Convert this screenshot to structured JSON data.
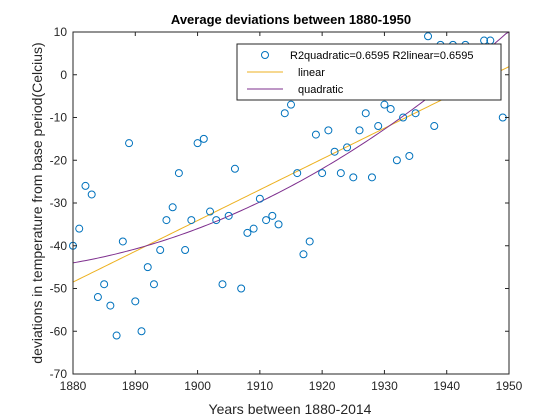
{
  "chart_data": {
    "type": "scatter",
    "title": "Average deviations between 1880-1950",
    "xlabel": "Years between 1880-2014",
    "ylabel": "deviations in temperature from base period(Celcius)",
    "xlim": [
      1880,
      1950
    ],
    "ylim": [
      -70,
      10
    ],
    "xticks": [
      1880,
      1890,
      1900,
      1910,
      1920,
      1930,
      1940,
      1950
    ],
    "yticks": [
      -70,
      -60,
      -50,
      -40,
      -30,
      -20,
      -10,
      0,
      10
    ],
    "grid": false,
    "legend_position": "top-right",
    "series": [
      {
        "name": "R2quadratic=0.6595 R2linear=0.6595",
        "kind": "markers",
        "marker": "circle",
        "color": "#0072BD",
        "x": [
          1880,
          1881,
          1882,
          1883,
          1884,
          1885,
          1886,
          1887,
          1888,
          1889,
          1890,
          1891,
          1892,
          1893,
          1894,
          1895,
          1896,
          1897,
          1898,
          1899,
          1900,
          1901,
          1902,
          1903,
          1904,
          1905,
          1906,
          1907,
          1908,
          1909,
          1910,
          1911,
          1912,
          1913,
          1914,
          1915,
          1916,
          1917,
          1918,
          1919,
          1920,
          1921,
          1922,
          1923,
          1924,
          1925,
          1926,
          1927,
          1928,
          1929,
          1930,
          1931,
          1932,
          1933,
          1934,
          1935,
          1936,
          1937,
          1938,
          1939,
          1940,
          1941,
          1942,
          1943,
          1944,
          1945,
          1946,
          1947,
          1948,
          1949
        ],
        "y": [
          -40,
          -36,
          -26,
          -28,
          -52,
          -49,
          -54,
          -61,
          -39,
          -16,
          -53,
          -60,
          -45,
          -49,
          -41,
          -34,
          -31,
          -23,
          -41,
          -34,
          -16,
          -15,
          -32,
          -34,
          -49,
          -33,
          -22,
          -50,
          -37,
          -36,
          -29,
          -34,
          -33,
          -35,
          -9,
          -7,
          -23,
          -42,
          -39,
          -14,
          -23,
          -13,
          -18,
          -23,
          -17,
          -24,
          -13,
          -9,
          -24,
          -12,
          -7,
          -8,
          -20,
          -10,
          -19,
          -9,
          2,
          9,
          -12,
          7,
          6,
          7,
          3,
          7,
          4,
          1,
          8,
          8,
          -5,
          -10
        ]
      },
      {
        "name": "linear",
        "kind": "line",
        "color": "#EDB120",
        "fit": "linear",
        "coefficients": [
          -48.5,
          0.72
        ]
      },
      {
        "name": "quadratic",
        "kind": "line",
        "color": "#7E2F8E",
        "fit": "quadratic",
        "coefficients": [
          -44,
          0.25,
          0.0075
        ]
      }
    ]
  }
}
